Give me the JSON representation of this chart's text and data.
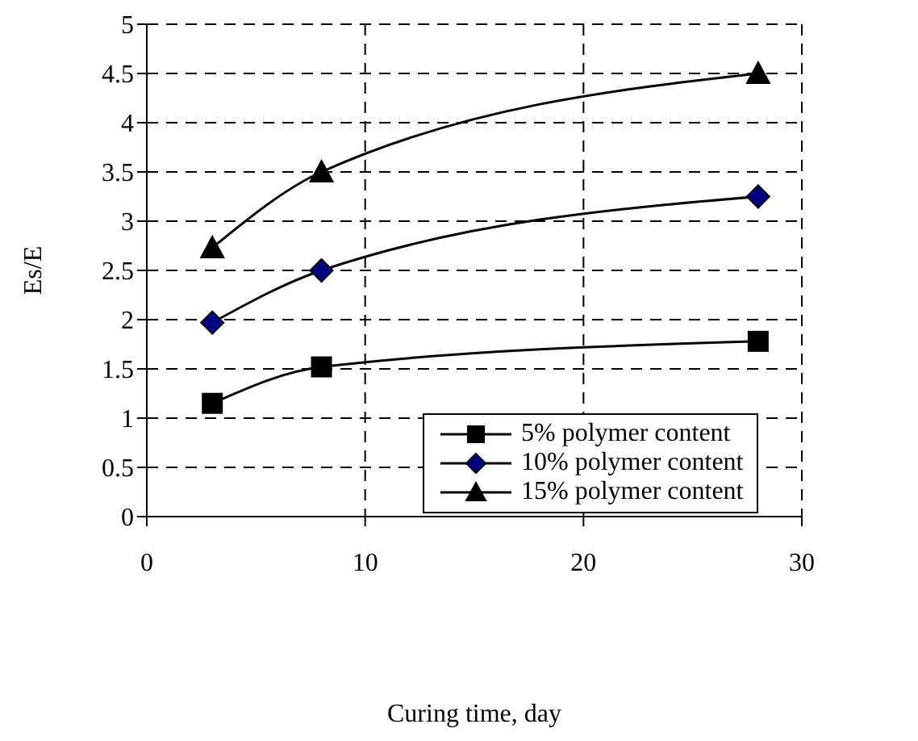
{
  "chart_data": {
    "type": "line",
    "xlabel": "Curing time, day",
    "ylabel": "Es/E",
    "x": [
      3,
      8,
      28
    ],
    "series": [
      {
        "name": "5% polymer content",
        "color": "#000000",
        "marker": "square",
        "values": [
          1.15,
          1.52,
          1.78
        ]
      },
      {
        "name": "10% polymer content",
        "color": "#000080",
        "marker": "diamond",
        "values": [
          1.97,
          2.5,
          3.25
        ]
      },
      {
        "name": "15% polymer content",
        "color": "#000000",
        "marker": "triangle",
        "values": [
          2.73,
          3.5,
          4.5
        ]
      }
    ],
    "xlim": [
      0,
      30
    ],
    "xticks": [
      0,
      10,
      20,
      30
    ],
    "ylim": [
      0,
      5
    ],
    "yticks": [
      0,
      0.5,
      1,
      1.5,
      2,
      2.5,
      3,
      3.5,
      4,
      4.5,
      5
    ],
    "grid": true,
    "legend": "bottom right",
    "line_style": "solid"
  }
}
